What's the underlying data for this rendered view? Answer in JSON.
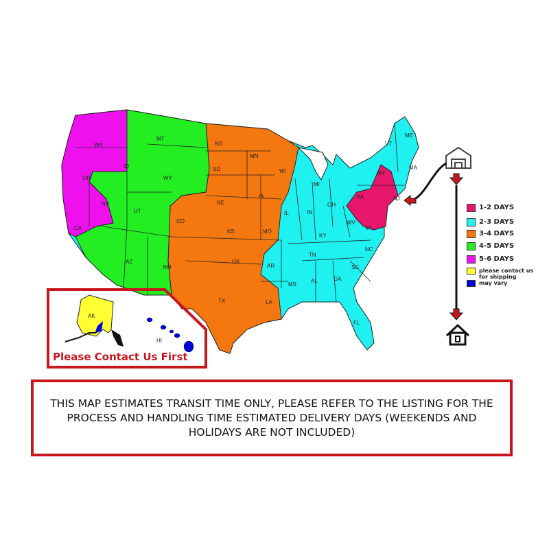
{
  "colors": {
    "zone_1_2": "#e8176e",
    "zone_2_3": "#1ff0f0",
    "zone_3_4": "#f5770f",
    "zone_4_5": "#22ee22",
    "zone_5_6": "#ee11ee",
    "contact": "#ffff33",
    "vary": "#0000dd",
    "border": "#c8161d"
  },
  "states": [
    "WA",
    "OR",
    "CA",
    "NV",
    "ID",
    "MT",
    "WY",
    "UT",
    "AZ",
    "NM",
    "CO",
    "ND",
    "SD",
    "NE",
    "KS",
    "OK",
    "TX",
    "MN",
    "IA",
    "MO",
    "AR",
    "LA",
    "WI",
    "IL",
    "MI",
    "IN",
    "OH",
    "KY",
    "TN",
    "MS",
    "AL",
    "GA",
    "FL",
    "SC",
    "NC",
    "VA",
    "WV",
    "PA",
    "NY",
    "NJ",
    "VT",
    "ME",
    "MA",
    "AK",
    "HI"
  ],
  "legend": [
    {
      "label": "1-2 DAYS",
      "color": "#e8176e"
    },
    {
      "label": "2-3 DAYS",
      "color": "#1ff0f0"
    },
    {
      "label": "3-4 DAYS",
      "color": "#f5770f"
    },
    {
      "label": "4-5 DAYS",
      "color": "#22ee22"
    },
    {
      "label": "5-6 DAYS",
      "color": "#ee11ee"
    },
    {
      "label": "please contact us for shipping",
      "color": "#ffff33"
    },
    {
      "label": "may vary",
      "color": "#0000dd"
    }
  ],
  "icons": {
    "origin": "warehouse-icon",
    "destination": "house-icon"
  },
  "alaska_hawaii_note": "Please Contact Us First",
  "notice": "THIS MAP ESTIMATES TRANSIT TIME ONLY, PLEASE REFER TO THE LISTING FOR THE PROCESS AND HANDLING TIME ESTIMATED DELIVERY DAYS (WEEKENDS AND HOLIDAYS ARE NOT INCLUDED)"
}
